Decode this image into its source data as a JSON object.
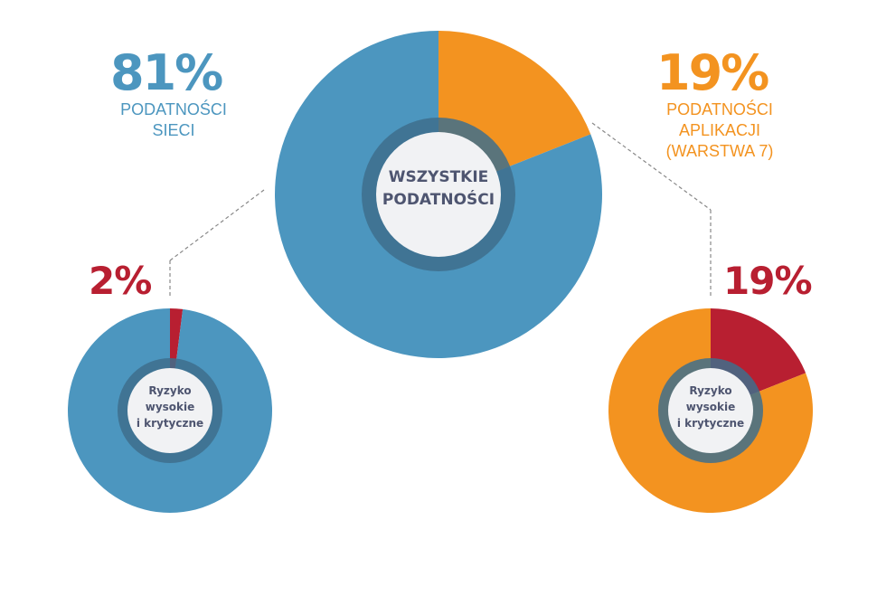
{
  "colors": {
    "network": "#4c96bf",
    "application": "#f39320",
    "critical": "#b81f31",
    "hole": "#f1f2f4",
    "hole_ring": "#3e6f8c",
    "connector": "#888888",
    "center_text": "#4e5570"
  },
  "main": {
    "center_label_line1": "WSZYSTKIE",
    "center_label_line2": "PODATNOŚCI",
    "network": {
      "percent": "81%",
      "label_line1": "PODATNOŚCI",
      "label_line2": "SIECI"
    },
    "application": {
      "percent": "19%",
      "label_line1": "PODATNOŚCI",
      "label_line2": "APLIKACJI",
      "label_line3": "(WARSTWA 7)"
    }
  },
  "left_sub": {
    "percent": "2%",
    "center_line1": "Ryzyko",
    "center_line2": "wysokie",
    "center_line3": "i krytyczne"
  },
  "right_sub": {
    "percent": "19%",
    "center_line1": "Ryzyko",
    "center_line2": "wysokie",
    "center_line3": "i krytyczne"
  },
  "chart_data": [
    {
      "type": "pie",
      "title": "WSZYSTKIE PODATNOŚCI",
      "slices": [
        {
          "label": "PODATNOŚCI APLIKACJI (WARSTWA 7)",
          "value": 19,
          "color": "#f39320"
        },
        {
          "label": "PODATNOŚCI SIECI",
          "value": 81,
          "color": "#4c96bf"
        }
      ]
    },
    {
      "type": "pie",
      "title": "",
      "slices": [
        {
          "label": "Ryzyko wysokie i krytyczne",
          "value": 2,
          "color": "#b81f31"
        },
        {
          "label": "",
          "value": 98,
          "color": "#4c96bf"
        }
      ]
    },
    {
      "type": "pie",
      "title": "",
      "slices": [
        {
          "label": "Ryzyko wysokie i krytyczne",
          "value": 19,
          "color": "#b81f31"
        },
        {
          "label": "",
          "value": 81,
          "color": "#f39320"
        }
      ]
    }
  ]
}
